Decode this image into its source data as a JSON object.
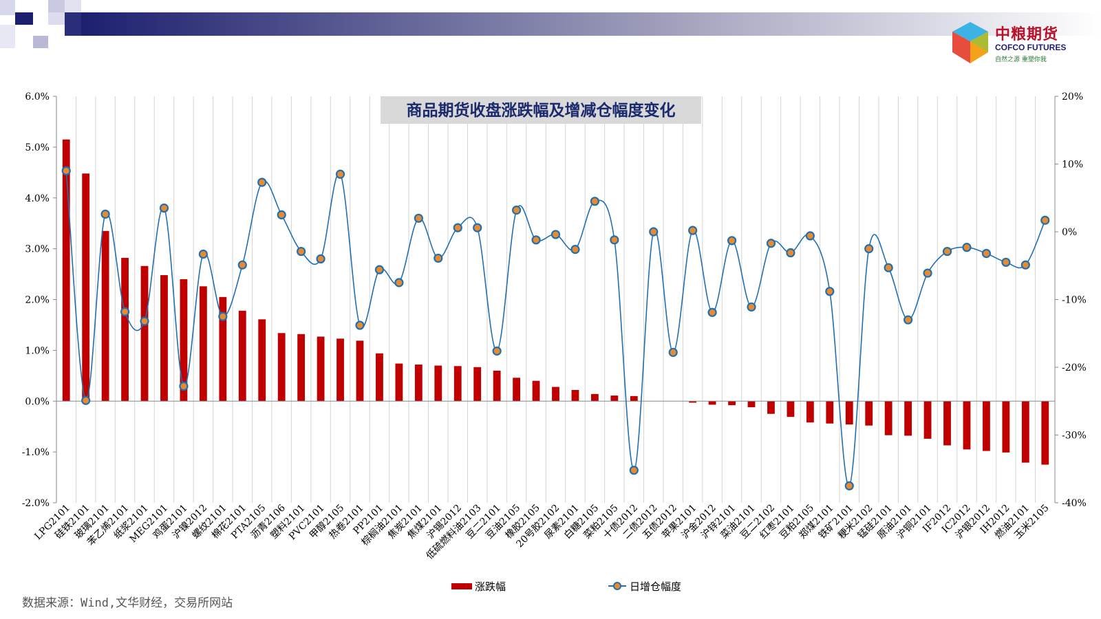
{
  "brand": {
    "name_cn": "中粮期货",
    "name_en": "COFCO FUTURES",
    "slogan": "自然之源 重塑你我"
  },
  "source_text": "数据来源：Wind,文华财经，交易所网站",
  "colors": {
    "bar": "#c00000",
    "line": "#1f6fb2",
    "marker_fill": "#e98a2e",
    "header_dark": "#1c1f6e"
  },
  "chart_data": {
    "type": "bar+line",
    "title": "商品期货收盘涨跌幅及增减仓幅度变化",
    "categories": [
      "LPG2101",
      "硅铁2101",
      "玻璃2101",
      "苯乙烯2101",
      "纸浆2101",
      "MEG2101",
      "鸡蛋2101",
      "沪镍2012",
      "螺纹2101",
      "棉花2101",
      "PTA2105",
      "沥青2106",
      "塑料2101",
      "PVC2101",
      "甲醇2105",
      "热卷2101",
      "PP2101",
      "棕榈油2101",
      "焦炭2101",
      "焦煤2101",
      "沪锡2012",
      "低硫燃料油2103",
      "豆二2101",
      "豆油2105",
      "橡胶2105",
      "20号胶2102",
      "尿素2101",
      "白糖2105",
      "菜粕2105",
      "十债2012",
      "二债2012",
      "五债2012",
      "苹果2101",
      "沪金2012",
      "沪锌2101",
      "菜油2101",
      "豆二2102",
      "红枣2101",
      "豆粕2105",
      "郑煤2101",
      "铁矿2101",
      "粳米2102",
      "锰硅2101",
      "原油2101",
      "沪铜2101",
      "IF2012",
      "IC2012",
      "沪银2012",
      "IH2012",
      "燃油2101",
      "玉米2105"
    ],
    "series": [
      {
        "name": "涨跌幅",
        "axis": "left",
        "type": "bar",
        "values": [
          5.15,
          4.48,
          3.35,
          2.82,
          2.66,
          2.48,
          2.4,
          2.26,
          2.05,
          1.78,
          1.61,
          1.34,
          1.32,
          1.27,
          1.23,
          1.19,
          0.94,
          0.74,
          0.72,
          0.7,
          0.69,
          0.67,
          0.6,
          0.46,
          0.4,
          0.28,
          0.22,
          0.14,
          0.11,
          0.1,
          0.0,
          0.0,
          -0.03,
          -0.07,
          -0.08,
          -0.12,
          -0.25,
          -0.31,
          -0.42,
          -0.44,
          -0.46,
          -0.48,
          -0.67,
          -0.68,
          -0.74,
          -0.87,
          -0.95,
          -0.98,
          -1.01,
          -1.21,
          -1.25
        ]
      },
      {
        "name": "日增仓幅度",
        "axis": "right",
        "type": "line",
        "values": [
          9.0,
          -24.9,
          2.6,
          -11.8,
          -13.2,
          3.5,
          -22.8,
          -3.3,
          -12.5,
          -4.9,
          7.3,
          2.5,
          -2.9,
          -4.0,
          8.5,
          -13.8,
          -5.6,
          -7.5,
          2.0,
          -3.9,
          0.6,
          0.6,
          -17.6,
          3.2,
          -1.2,
          -0.4,
          -2.6,
          4.5,
          -1.2,
          -35.2,
          0.0,
          -17.8,
          0.2,
          -11.9,
          -1.3,
          -11.1,
          -1.7,
          -3.1,
          -0.6,
          -8.8,
          -37.5,
          -2.5,
          -5.3,
          -13.0,
          -6.1,
          -2.9,
          -2.3,
          -3.2,
          -4.5,
          -4.9,
          1.7
        ]
      }
    ],
    "y_left": {
      "min": -2.0,
      "max": 6.0,
      "step": 1.0,
      "ticks": [
        "-2.0%",
        "-1.0%",
        "0.0%",
        "1.0%",
        "2.0%",
        "3.0%",
        "4.0%",
        "5.0%",
        "6.0%"
      ]
    },
    "y_right": {
      "min": -40,
      "max": 20,
      "step": 10,
      "ticks": [
        "-40%",
        "-30%",
        "-20%",
        "-10%",
        "0%",
        "10%",
        "20%"
      ]
    },
    "grid": "vertical",
    "legend_position": "bottom"
  }
}
